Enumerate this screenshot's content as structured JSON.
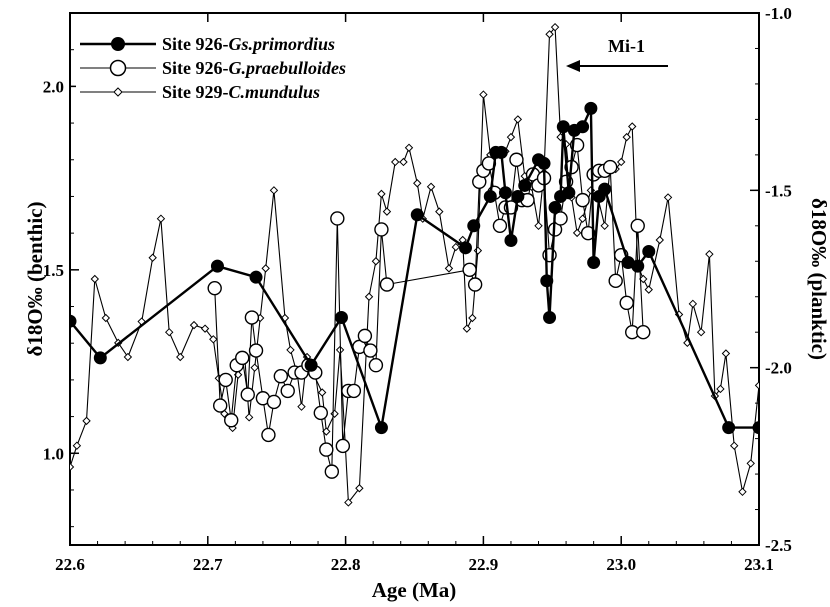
{
  "chart_data": {
    "type": "line",
    "xlabel": "Age (Ma)",
    "ylabel_left": "δ18O‰ (benthic)",
    "ylabel_right": "δ18O‰ (planktic)",
    "xlim": [
      22.6,
      23.1
    ],
    "ylim_left": [
      0.75,
      2.2
    ],
    "ylim_right": [
      -2.5,
      -1.0
    ],
    "x_ticks": [
      "22.6",
      "22.7",
      "22.8",
      "22.9",
      "23.0",
      "23.1"
    ],
    "y_left_ticks": [
      "1.0",
      "1.5",
      "2.0"
    ],
    "y_right_ticks": [
      "-1.0",
      "-1.5",
      "-2.0",
      "-2.5"
    ],
    "annotation": "Mi-1",
    "series": [
      {
        "name_prefix": "Site 926-",
        "name_taxon": "Gs.primordius",
        "axis": "left",
        "marker": "filled-circle",
        "line": "thick",
        "points": [
          [
            22.6,
            1.36
          ],
          [
            22.622,
            1.26
          ],
          [
            22.707,
            1.51
          ],
          [
            22.735,
            1.48
          ],
          [
            22.775,
            1.24
          ],
          [
            22.797,
            1.37
          ],
          [
            22.826,
            1.07
          ],
          [
            22.852,
            1.65
          ],
          [
            22.887,
            1.56
          ],
          [
            22.893,
            1.62
          ],
          [
            22.905,
            1.7
          ],
          [
            22.909,
            1.82
          ],
          [
            22.913,
            1.82
          ],
          [
            22.916,
            1.71
          ],
          [
            22.92,
            1.58
          ],
          [
            22.925,
            1.7
          ],
          [
            22.93,
            1.73
          ],
          [
            22.94,
            1.8
          ],
          [
            22.944,
            1.79
          ],
          [
            22.946,
            1.47
          ],
          [
            22.948,
            1.37
          ],
          [
            22.952,
            1.67
          ],
          [
            22.956,
            1.7
          ],
          [
            22.958,
            1.89
          ],
          [
            22.962,
            1.71
          ],
          [
            22.966,
            1.88
          ],
          [
            22.972,
            1.89
          ],
          [
            22.978,
            1.94
          ],
          [
            22.98,
            1.52
          ],
          [
            22.984,
            1.7
          ],
          [
            22.988,
            1.72
          ],
          [
            23.005,
            1.52
          ],
          [
            23.012,
            1.51
          ],
          [
            23.02,
            1.55
          ],
          [
            23.078,
            1.07
          ],
          [
            23.1,
            1.07
          ]
        ]
      },
      {
        "name_prefix": "Site 926-",
        "name_taxon": "G.praebulloides",
        "axis": "left",
        "marker": "open-circle",
        "line": "thin",
        "points": [
          [
            22.705,
            1.45
          ],
          [
            22.709,
            1.13
          ],
          [
            22.713,
            1.2
          ],
          [
            22.717,
            1.09
          ],
          [
            22.721,
            1.24
          ],
          [
            22.725,
            1.26
          ],
          [
            22.729,
            1.16
          ],
          [
            22.732,
            1.37
          ],
          [
            22.735,
            1.28
          ],
          [
            22.74,
            1.15
          ],
          [
            22.744,
            1.05
          ],
          [
            22.748,
            1.14
          ],
          [
            22.753,
            1.21
          ],
          [
            22.758,
            1.17
          ],
          [
            22.763,
            1.22
          ],
          [
            22.768,
            1.22
          ],
          [
            22.773,
            1.24
          ],
          [
            22.778,
            1.22
          ],
          [
            22.782,
            1.11
          ],
          [
            22.786,
            1.01
          ],
          [
            22.79,
            0.95
          ],
          [
            22.794,
            1.64
          ],
          [
            22.798,
            1.02
          ],
          [
            22.802,
            1.17
          ],
          [
            22.806,
            1.17
          ],
          [
            22.81,
            1.29
          ],
          [
            22.814,
            1.32
          ],
          [
            22.818,
            1.28
          ],
          [
            22.822,
            1.24
          ],
          [
            22.826,
            1.61
          ],
          [
            22.83,
            1.46
          ],
          [
            22.89,
            1.5
          ],
          [
            22.894,
            1.46
          ],
          [
            22.897,
            1.74
          ],
          [
            22.9,
            1.77
          ],
          [
            22.904,
            1.79
          ],
          [
            22.908,
            1.71
          ],
          [
            22.912,
            1.62
          ],
          [
            22.916,
            1.67
          ],
          [
            22.92,
            1.67
          ],
          [
            22.924,
            1.8
          ],
          [
            22.928,
            1.69
          ],
          [
            22.932,
            1.69
          ],
          [
            22.936,
            1.76
          ],
          [
            22.94,
            1.73
          ],
          [
            22.944,
            1.75
          ],
          [
            22.948,
            1.54
          ],
          [
            22.952,
            1.61
          ],
          [
            22.956,
            1.64
          ],
          [
            22.96,
            1.74
          ],
          [
            22.964,
            1.78
          ],
          [
            22.968,
            1.84
          ],
          [
            22.972,
            1.69
          ],
          [
            22.976,
            1.6
          ],
          [
            22.98,
            1.76
          ],
          [
            22.984,
            1.77
          ],
          [
            22.988,
            1.77
          ],
          [
            22.992,
            1.78
          ],
          [
            22.996,
            1.47
          ],
          [
            23.0,
            1.54
          ],
          [
            23.004,
            1.41
          ],
          [
            23.008,
            1.33
          ],
          [
            23.012,
            1.62
          ],
          [
            23.016,
            1.33
          ]
        ]
      },
      {
        "name_prefix": "Site 929-",
        "name_taxon": "C.mundulus",
        "axis": "right",
        "marker": "small-diamond",
        "line": "thin",
        "points": [
          [
            22.6,
            -2.28
          ],
          [
            22.605,
            -2.22
          ],
          [
            22.612,
            -2.15
          ],
          [
            22.618,
            -1.75
          ],
          [
            22.626,
            -1.86
          ],
          [
            22.635,
            -1.93
          ],
          [
            22.642,
            -1.97
          ],
          [
            22.652,
            -1.87
          ],
          [
            22.66,
            -1.69
          ],
          [
            22.666,
            -1.58
          ],
          [
            22.672,
            -1.9
          ],
          [
            22.68,
            -1.97
          ],
          [
            22.69,
            -1.88
          ],
          [
            22.698,
            -1.89
          ],
          [
            22.704,
            -1.92
          ],
          [
            22.708,
            -2.03
          ],
          [
            22.712,
            -2.13
          ],
          [
            22.718,
            -2.17
          ],
          [
            22.722,
            -2.02
          ],
          [
            22.727,
            -1.98
          ],
          [
            22.73,
            -2.14
          ],
          [
            22.734,
            -2.0
          ],
          [
            22.738,
            -1.86
          ],
          [
            22.742,
            -1.72
          ],
          [
            22.748,
            -1.5
          ],
          [
            22.756,
            -1.86
          ],
          [
            22.76,
            -1.95
          ],
          [
            22.765,
            -2.02
          ],
          [
            22.768,
            -2.11
          ],
          [
            22.772,
            -1.97
          ],
          [
            22.777,
            -2.02
          ],
          [
            22.783,
            -2.07
          ],
          [
            22.786,
            -2.18
          ],
          [
            22.792,
            -2.13
          ],
          [
            22.796,
            -1.95
          ],
          [
            22.802,
            -2.38
          ],
          [
            22.81,
            -2.34
          ],
          [
            22.817,
            -1.8
          ],
          [
            22.822,
            -1.7
          ],
          [
            22.826,
            -1.51
          ],
          [
            22.83,
            -1.56
          ],
          [
            22.836,
            -1.42
          ],
          [
            22.842,
            -1.42
          ],
          [
            22.846,
            -1.38
          ],
          [
            22.852,
            -1.48
          ],
          [
            22.856,
            -1.58
          ],
          [
            22.862,
            -1.49
          ],
          [
            22.868,
            -1.56
          ],
          [
            22.875,
            -1.72
          ],
          [
            22.88,
            -1.66
          ],
          [
            22.885,
            -1.64
          ],
          [
            22.888,
            -1.89
          ],
          [
            22.892,
            -1.86
          ],
          [
            22.896,
            -1.67
          ],
          [
            22.9,
            -1.23
          ],
          [
            22.905,
            -1.4
          ],
          [
            22.912,
            -1.4
          ],
          [
            22.916,
            -1.39
          ],
          [
            22.92,
            -1.35
          ],
          [
            22.925,
            -1.3
          ],
          [
            22.93,
            -1.46
          ],
          [
            22.935,
            -1.49
          ],
          [
            22.94,
            -1.6
          ],
          [
            22.944,
            -1.45
          ],
          [
            22.948,
            -1.06
          ],
          [
            22.952,
            -1.04
          ],
          [
            22.956,
            -1.35
          ],
          [
            22.96,
            -1.37
          ],
          [
            22.964,
            -1.52
          ],
          [
            22.968,
            -1.62
          ],
          [
            22.972,
            -1.58
          ],
          [
            22.978,
            -1.5
          ],
          [
            22.983,
            -1.52
          ],
          [
            22.988,
            -1.6
          ],
          [
            22.992,
            -1.43
          ],
          [
            22.996,
            -1.44
          ],
          [
            23.0,
            -1.42
          ],
          [
            23.004,
            -1.35
          ],
          [
            23.008,
            -1.32
          ],
          [
            23.012,
            -1.71
          ],
          [
            23.016,
            -1.75
          ],
          [
            23.02,
            -1.78
          ],
          [
            23.028,
            -1.64
          ],
          [
            23.034,
            -1.52
          ],
          [
            23.042,
            -1.85
          ],
          [
            23.048,
            -1.93
          ],
          [
            23.052,
            -1.82
          ],
          [
            23.058,
            -1.9
          ],
          [
            23.064,
            -1.68
          ],
          [
            23.068,
            -2.08
          ],
          [
            23.072,
            -2.06
          ],
          [
            23.076,
            -1.96
          ],
          [
            23.082,
            -2.22
          ],
          [
            23.088,
            -2.35
          ],
          [
            23.094,
            -2.27
          ],
          [
            23.1,
            -2.05
          ],
          [
            23.105,
            -2.01
          ]
        ]
      }
    ]
  }
}
